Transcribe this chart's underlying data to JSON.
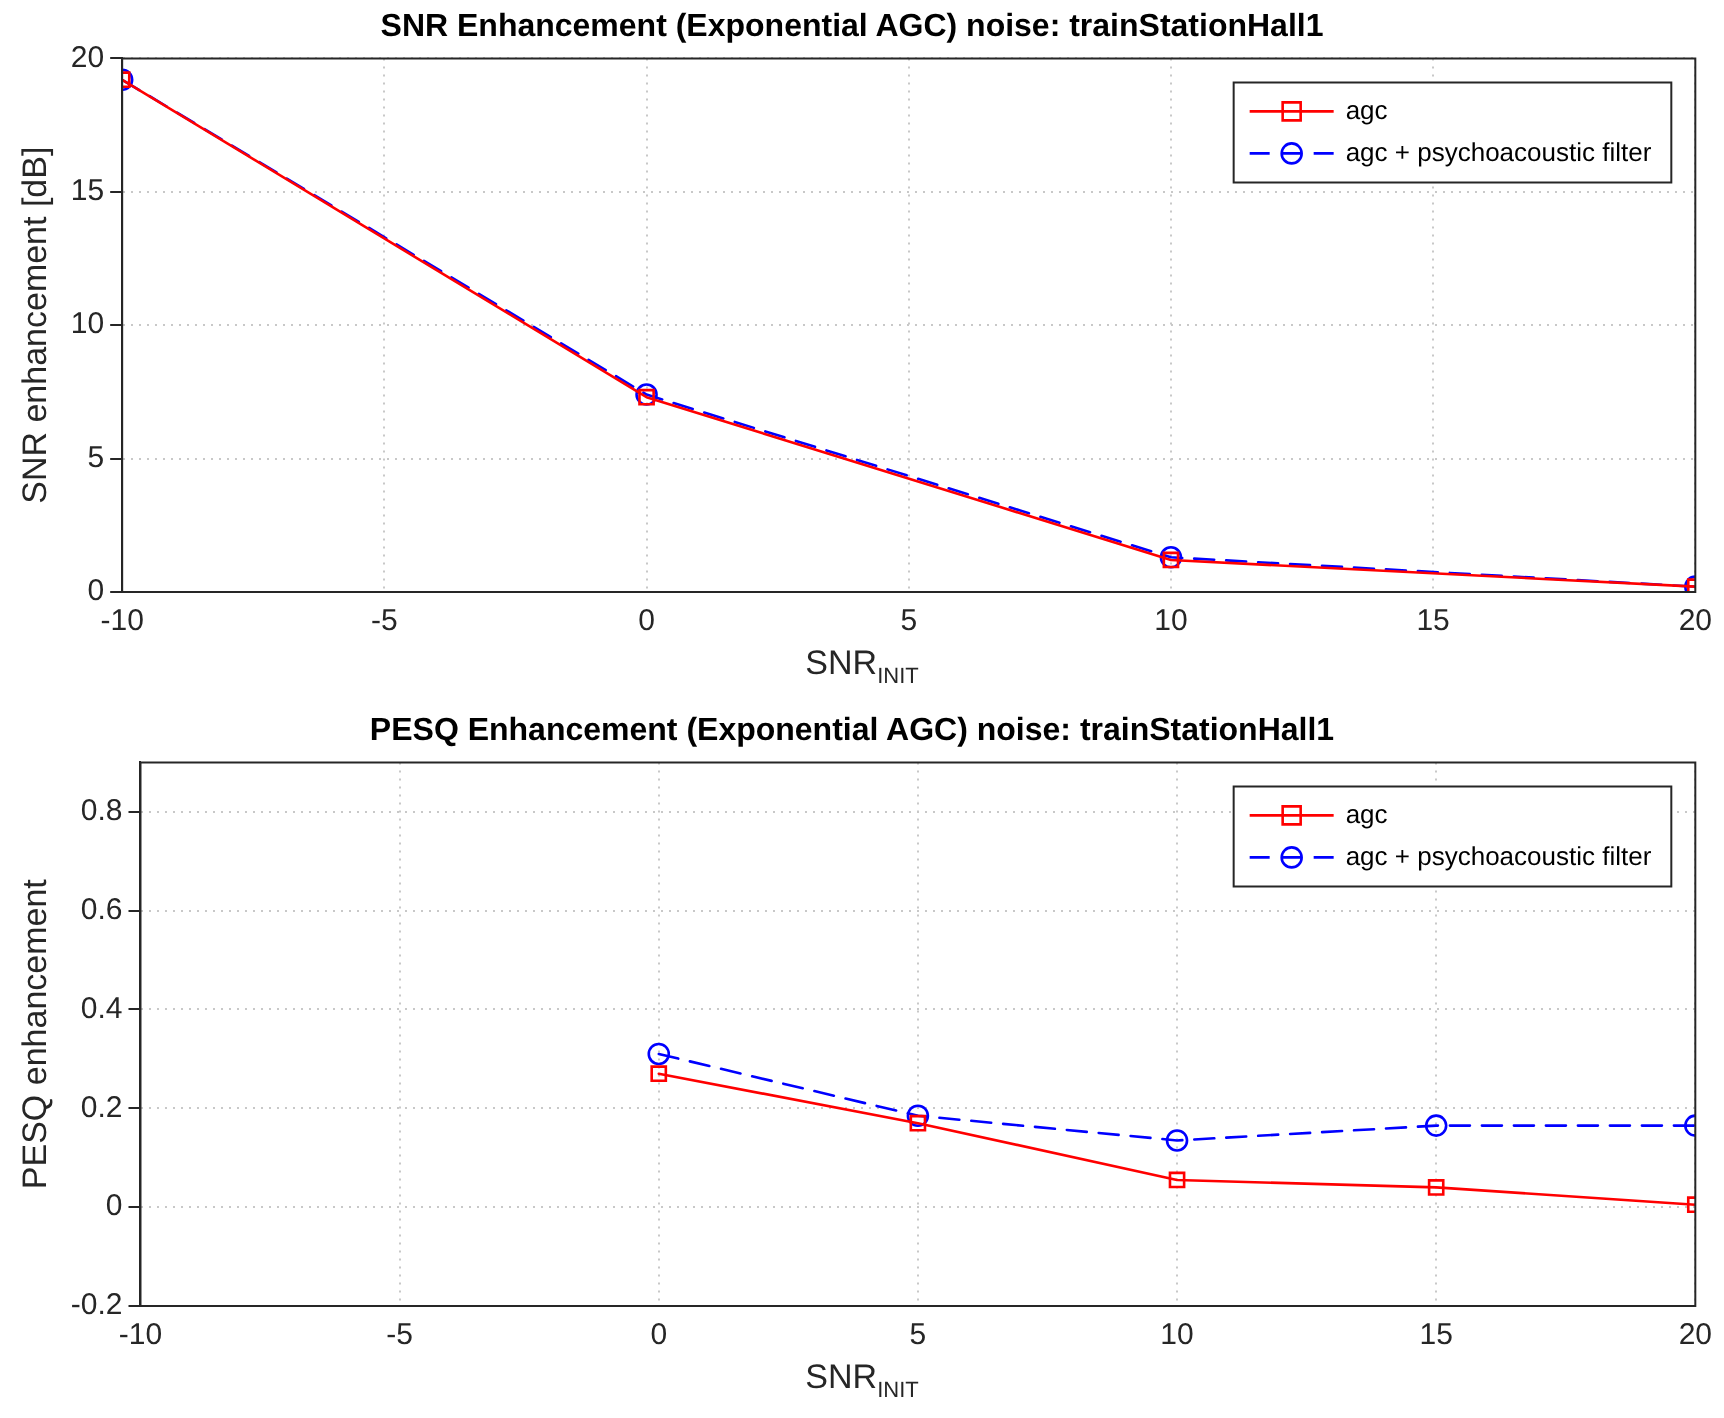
{
  "chart_data": [
    {
      "type": "line",
      "title": "SNR Enhancement (Exponential AGC) noise: trainStationHall1",
      "xlabel": "SNR$_{INIT}$",
      "ylabel": "SNR enhancement [dB]",
      "x": [
        -10,
        0,
        10,
        20
      ],
      "series": [
        {
          "name": "agc",
          "color": "#ff0000",
          "marker": "square",
          "line_style": "solid",
          "values": [
            19.2,
            7.3,
            1.2,
            0.2
          ]
        },
        {
          "name": "agc + psychoacoustic filter",
          "color": "#0000ff",
          "marker": "circle",
          "line_style": "dashed",
          "values": [
            19.2,
            7.4,
            1.3,
            0.2
          ]
        }
      ],
      "xlim": [
        -10,
        20
      ],
      "xticks": [
        -10,
        -5,
        0,
        5,
        10,
        15,
        20
      ],
      "ylim": [
        0,
        20
      ],
      "yticks": [
        0,
        5,
        10,
        15,
        20
      ],
      "grid": true,
      "legend": "top right"
    },
    {
      "type": "line",
      "title": "PESQ Enhancement (Exponential AGC) noise: trainStationHall1",
      "xlabel": "SNR$_{INIT}$",
      "ylabel": "PESQ enhancement",
      "x": [
        0,
        5,
        10,
        15,
        20
      ],
      "series": [
        {
          "name": "agc",
          "color": "#ff0000",
          "marker": "square",
          "line_style": "solid",
          "values": [
            0.27,
            0.17,
            0.055,
            0.04,
            0.005
          ]
        },
        {
          "name": "agc + psychoacoustic filter",
          "color": "#0000ff",
          "marker": "circle",
          "line_style": "dashed",
          "values": [
            0.31,
            0.185,
            0.135,
            0.165,
            0.165
          ]
        }
      ],
      "xlim": [
        -10,
        20
      ],
      "xticks": [
        -10,
        -5,
        0,
        5,
        10,
        15,
        20
      ],
      "ylim": [
        -0.2,
        0.9
      ],
      "yticks": [
        -0.2,
        0,
        0.2,
        0.4,
        0.6,
        0.8
      ],
      "grid": true,
      "legend": "top right"
    }
  ]
}
